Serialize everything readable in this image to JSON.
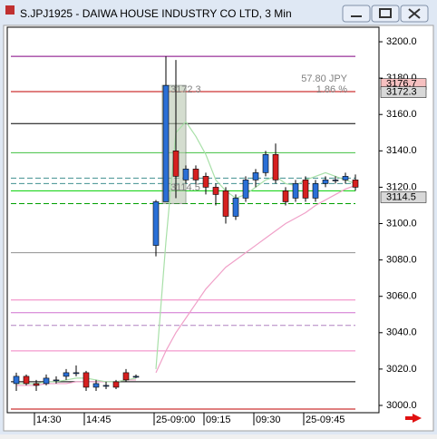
{
  "window_title": "S.JPJ1925 - DAIWA HOUSE INDUSTRY CO LTD, 3 Min",
  "chart_data": {
    "type": "candlestick",
    "categories": [
      null,
      null,
      "14:30",
      null,
      null,
      null,
      null,
      "14:45",
      null,
      null,
      null,
      null,
      null,
      null,
      "25-09:00",
      null,
      null,
      null,
      null,
      "09:15",
      null,
      null,
      null,
      null,
      "09:30",
      null,
      null,
      null,
      null,
      "25-09:45",
      null,
      null,
      null,
      null,
      null
    ],
    "open": [
      3012,
      3016,
      3012,
      3012,
      3014,
      3016,
      3018,
      3018,
      3010,
      3011,
      3013,
      3018,
      3016,
      null,
      3088,
      3112,
      3140,
      3124,
      3130,
      3126,
      3120,
      3118,
      3104,
      3114,
      3124,
      3128,
      3138,
      3118,
      3114,
      3124,
      3114,
      3122,
      3124,
      3124,
      3124
    ],
    "high": [
      3018,
      3017,
      3014,
      3017,
      3016,
      3020,
      3022,
      3019,
      3014,
      3013,
      3014,
      3020,
      3017,
      null,
      3113,
      3192,
      3190,
      3132,
      3132,
      3128,
      3122,
      3120,
      3116,
      3126,
      3130,
      3140,
      3144,
      3120,
      3124,
      3126,
      3124,
      3126,
      3126,
      3128,
      3127
    ],
    "low": [
      3008,
      3011,
      3008,
      3011,
      3012,
      3014,
      3016,
      3008,
      3008,
      3009,
      3009,
      3013,
      3015,
      null,
      3082,
      3112,
      3114,
      3122,
      3120,
      3116,
      3110,
      3100,
      3102,
      3112,
      3120,
      3126,
      3122,
      3110,
      3112,
      3112,
      3112,
      3120,
      3122,
      3122,
      3118
    ],
    "close": [
      3016,
      3012,
      3011,
      3015,
      3014,
      3018,
      3018,
      3010,
      3012,
      3011,
      3010,
      3014,
      3016,
      null,
      3112,
      3176,
      3126,
      3130,
      3124,
      3120,
      3116,
      3104,
      3114,
      3124,
      3128,
      3138,
      3124,
      3112,
      3122,
      3114,
      3122,
      3124,
      3124,
      3126,
      3120
    ],
    "up_color": "#2a6fd6",
    "down_color": "#d62020",
    "series": [
      {
        "color": "#f0a0c8",
        "values": [
          3011,
          3011,
          3011,
          3012,
          3012,
          3012,
          3013,
          3013,
          3013,
          3013,
          3013,
          3014,
          3014,
          null,
          3018,
          3030,
          3040,
          3048,
          3056,
          3064,
          3070,
          3076,
          3080,
          3084,
          3088,
          3092,
          3096,
          3100,
          3103,
          3106,
          3110,
          3113,
          3116,
          3119,
          3121
        ]
      },
      {
        "color": "#a8e0a8",
        "values": [
          3012,
          3012,
          3012,
          3013,
          3013,
          3014,
          3015,
          3015,
          3014,
          3013,
          3013,
          3014,
          3015,
          null,
          3020,
          3090,
          3150,
          3156,
          3148,
          3138,
          3124,
          3118,
          3114,
          3116,
          3120,
          3124,
          3126,
          3122,
          3121,
          3124,
          3126,
          3128,
          3126,
          3124,
          3122
        ]
      }
    ],
    "levels": [
      {
        "value": 3192,
        "color": "#800080",
        "dash": false
      },
      {
        "value": 3172.6,
        "color": "#c00000",
        "dash": false
      },
      {
        "value": 3155,
        "color": "#000000",
        "dash": false
      },
      {
        "value": 3139,
        "color": "#40c040",
        "dash": false
      },
      {
        "value": 3125,
        "color": "#409090",
        "dash": true
      },
      {
        "value": 3122,
        "color": "#409090",
        "dash": true
      },
      {
        "value": 3118,
        "color": "#00d000",
        "dash": false
      },
      {
        "value": 3111,
        "color": "#00a000",
        "dash": true
      },
      {
        "value": 3084,
        "color": "#909090",
        "dash": false
      },
      {
        "value": 3058,
        "color": "#f080c0",
        "dash": false
      },
      {
        "value": 3051,
        "color": "#d070d0",
        "dash": false
      },
      {
        "value": 3044,
        "color": "#b080c0",
        "dash": true
      },
      {
        "value": 3030,
        "color": "#f080c0",
        "dash": false
      },
      {
        "value": 3013,
        "color": "#000000",
        "dash": false
      },
      {
        "value": 2998,
        "color": "#c00000",
        "dash": false
      }
    ],
    "price_tags": [
      {
        "value": 3176.7,
        "label": "3176.7",
        "color": "#f6c0c0"
      },
      {
        "value": 3172.3,
        "label": "3172.3",
        "color": "#d8d8d8"
      },
      {
        "value": 3114.5,
        "label": "3114.5",
        "color": "#d8d8d8"
      }
    ],
    "annotations": [
      "57.80 JPY",
      "1.86 %",
      "3172.3",
      "3114.5"
    ],
    "ylim": [
      2996,
      3208
    ],
    "yticks": [
      {
        "value": 3000,
        "label": "3000.0"
      },
      {
        "value": 3020,
        "label": "3020.0"
      },
      {
        "value": 3040,
        "label": "3040.0"
      },
      {
        "value": 3060,
        "label": "3060.0"
      },
      {
        "value": 3080,
        "label": "3080.0"
      },
      {
        "value": 3100,
        "label": "3100.0"
      },
      {
        "value": 3120,
        "label": "3120.0"
      },
      {
        "value": 3140,
        "label": "3140.0"
      },
      {
        "value": 3160,
        "label": "3160.0"
      },
      {
        "value": 3180,
        "label": "3180.0"
      },
      {
        "value": 3200,
        "label": "3200.0"
      }
    ]
  }
}
